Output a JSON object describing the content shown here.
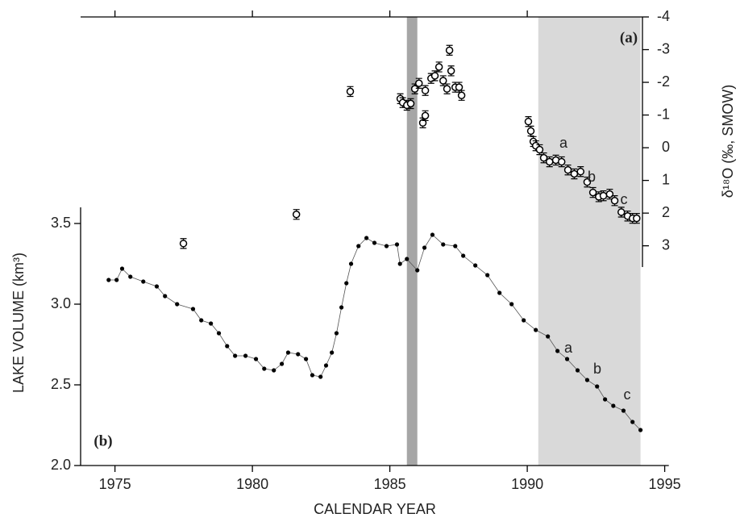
{
  "chart_data": {
    "type": "scatter",
    "x_label": "CALENDAR YEAR",
    "y_label": "LAKE VOLUME (km³)",
    "y2_label": "δ¹⁸O (‰, SMOW)",
    "annotations": [
      "(a)",
      "(b)",
      "a",
      "b",
      "c",
      "a",
      "b",
      "c"
    ],
    "xlim": [
      1973.75,
      1995.15
    ],
    "xticks": [
      1975,
      1980,
      1985,
      1990,
      1995
    ],
    "ylim": [
      2.0,
      3.6
    ],
    "yticks": [
      {
        "value": 2.0,
        "label": "2.0"
      },
      2.5,
      {
        "value": 3.0,
        "label": "3.0"
      },
      3.5
    ],
    "y2lim": [
      3.65,
      -4
    ],
    "y2ticks": [
      -4,
      -3,
      -2,
      -1,
      0,
      1,
      2,
      3
    ],
    "shaded_spans": [
      {
        "from": 1985.62,
        "to": 1986.0,
        "color": "#a6a6a6"
      },
      {
        "from": 1990.4,
        "to": 1994.12,
        "color": "#d9d9d9"
      }
    ],
    "series": [
      {
        "color": "#000000",
        "marker": "dot",
        "x": [
          1974.77,
          1975.06,
          1975.26,
          1975.56,
          1976.03,
          1976.52,
          1976.82,
          1977.26,
          1977.84,
          1978.14,
          1978.49,
          1978.78,
          1979.08,
          1979.37,
          1979.75,
          1980.13,
          1980.43,
          1980.78,
          1981.07,
          1981.3,
          1981.66,
          1981.95,
          1982.18,
          1982.48,
          1982.68,
          1982.89,
          1983.06,
          1983.24,
          1983.42,
          1983.59,
          1983.86,
          1984.15,
          1984.44,
          1984.88,
          1985.26,
          1985.37,
          1985.62,
          1986.0,
          1986.26,
          1986.55,
          1986.94,
          1987.38,
          1987.67,
          1988.11,
          1988.55,
          1988.99,
          1989.43,
          1989.87,
          1990.31,
          1990.75,
          1991.1,
          1991.45,
          1991.83,
          1992.18,
          1992.54,
          1992.83,
          1993.13,
          1993.5,
          1993.83,
          1994.12
        ],
        "values": [
          3.15,
          3.15,
          3.22,
          3.17,
          3.14,
          3.11,
          3.05,
          3.0,
          2.97,
          2.9,
          2.88,
          2.82,
          2.74,
          2.68,
          2.68,
          2.66,
          2.6,
          2.59,
          2.63,
          2.7,
          2.69,
          2.66,
          2.56,
          2.55,
          2.62,
          2.7,
          2.82,
          2.98,
          3.13,
          3.25,
          3.36,
          3.41,
          3.38,
          3.36,
          3.37,
          3.25,
          3.28,
          3.21,
          3.35,
          3.43,
          3.37,
          3.36,
          3.3,
          3.24,
          3.18,
          3.07,
          3.0,
          2.9,
          2.84,
          2.8,
          2.71,
          2.66,
          2.59,
          2.53,
          2.49,
          2.41,
          2.37,
          2.34,
          2.27,
          2.22
        ]
      },
      {
        "color": "#000000",
        "marker": "open-circle",
        "axis": "y2",
        "x": [
          1977.49,
          1981.6,
          1983.56,
          1985.38,
          1985.47,
          1985.62,
          1985.76,
          1985.91,
          1986.06,
          1986.2,
          1986.29,
          1986.29,
          1986.5,
          1986.64,
          1986.79,
          1986.94,
          1987.08,
          1987.17,
          1987.23,
          1987.38,
          1987.52,
          1987.61,
          1990.04,
          1990.13,
          1990.22,
          1990.31,
          1990.45,
          1990.6,
          1990.81,
          1991.04,
          1991.25,
          1991.48,
          1991.71,
          1991.94,
          1992.18,
          1992.39,
          1992.6,
          1992.77,
          1993.0,
          1993.18,
          1993.42,
          1993.65,
          1993.83,
          1993.98
        ],
        "values": [
          2.93,
          2.04,
          -1.72,
          -1.5,
          -1.38,
          -1.3,
          -1.35,
          -1.8,
          -1.97,
          -0.76,
          -0.98,
          -1.75,
          -2.12,
          -2.2,
          -2.47,
          -2.05,
          -1.8,
          -2.98,
          -2.35,
          -1.85,
          -1.85,
          -1.6,
          -0.8,
          -0.51,
          -0.19,
          -0.06,
          0.06,
          0.31,
          0.43,
          0.38,
          0.43,
          0.68,
          0.8,
          0.73,
          1.05,
          1.37,
          1.5,
          1.47,
          1.42,
          1.62,
          1.97,
          2.09,
          2.16,
          2.16
        ],
        "errors": [
          0.15,
          0.15,
          0.15,
          0.15,
          0.15,
          0.15,
          0.15,
          0.15,
          0.15,
          0.15,
          0.15,
          0.15,
          0.15,
          0.15,
          0.15,
          0.15,
          0.15,
          0.15,
          0.15,
          0.15,
          0.15,
          0.15,
          0.15,
          0.15,
          0.15,
          0.15,
          0.15,
          0.15,
          0.15,
          0.15,
          0.15,
          0.15,
          0.15,
          0.15,
          0.15,
          0.15,
          0.15,
          0.15,
          0.15,
          0.15,
          0.15,
          0.15,
          0.15,
          0.15
        ]
      }
    ]
  }
}
